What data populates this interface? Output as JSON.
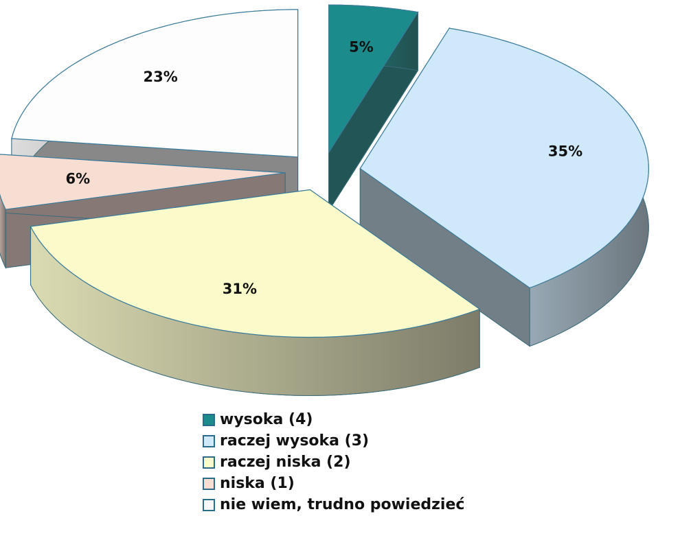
{
  "chart_data": {
    "type": "pie",
    "categories": [
      "wysoka (4)",
      "raczej wysoka (3)",
      "raczej niska (2)",
      "niska (1)",
      "nie wiem, trudno powiedzieć"
    ],
    "values": [
      5,
      35,
      31,
      6,
      23
    ],
    "value_labels": [
      "5%",
      "35%",
      "31%",
      "6%",
      "23%"
    ],
    "colors": [
      "#1b8b8b",
      "#cfe9fa",
      "#fafaca",
      "#f8ddd3",
      "#fdfdfd"
    ],
    "legend": "bottom"
  }
}
